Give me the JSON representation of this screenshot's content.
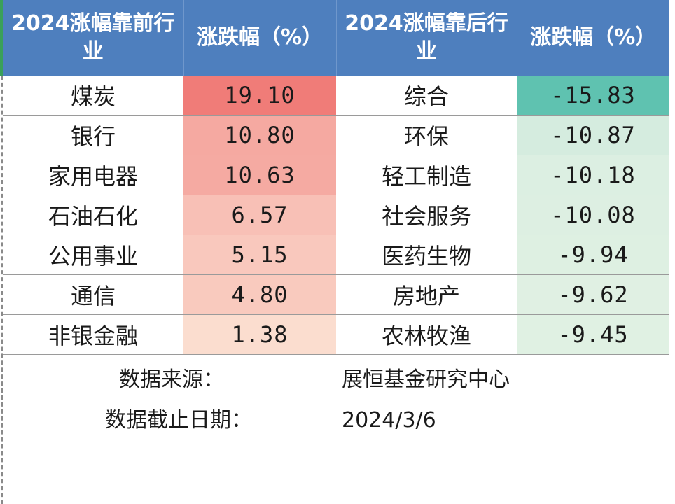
{
  "chart_data": {
    "type": "table",
    "columns": [
      "2024涨幅靠前行业",
      "涨跌幅（%）",
      "2024涨幅靠后行业",
      "涨跌幅（%）"
    ],
    "top": [
      {
        "industry": "煤炭",
        "change": 19.1,
        "change_label": "19.10"
      },
      {
        "industry": "银行",
        "change": 10.8,
        "change_label": "10.80"
      },
      {
        "industry": "家用电器",
        "change": 10.63,
        "change_label": "10.63"
      },
      {
        "industry": "石油石化",
        "change": 6.57,
        "change_label": "6.57"
      },
      {
        "industry": "公用事业",
        "change": 5.15,
        "change_label": "5.15"
      },
      {
        "industry": "通信",
        "change": 4.8,
        "change_label": "4.80"
      },
      {
        "industry": "非银金融",
        "change": 1.38,
        "change_label": "1.38"
      }
    ],
    "bottom": [
      {
        "industry": "综合",
        "change": -15.83,
        "change_label": "-15.83"
      },
      {
        "industry": "环保",
        "change": -10.87,
        "change_label": "-10.87"
      },
      {
        "industry": "轻工制造",
        "change": -10.18,
        "change_label": "-10.18"
      },
      {
        "industry": "社会服务",
        "change": -10.08,
        "change_label": "-10.08"
      },
      {
        "industry": "医药生物",
        "change": -9.94,
        "change_label": "-9.94"
      },
      {
        "industry": "房地产",
        "change": -9.62,
        "change_label": "-9.62"
      },
      {
        "industry": "农林牧渔",
        "change": -9.45,
        "change_label": "-9.45"
      }
    ],
    "colors": {
      "header_bg": "#4e7fbe",
      "positive_max": "#f07c78",
      "positive_min": "#fdeadb",
      "negative_max": "#5fc2b0",
      "negative_min": "#e7f3e6"
    }
  },
  "notes": {
    "source_label": "数据来源：",
    "source_value": "展恒基金研究中心",
    "date_label": "数据截止日期：",
    "date_value": "2024/3/6"
  }
}
